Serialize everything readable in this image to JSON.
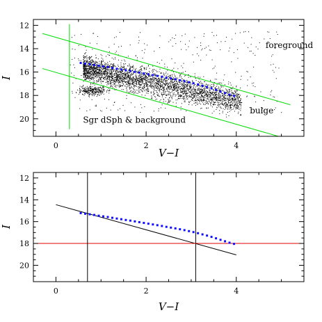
{
  "chart_data": [
    {
      "type": "scatter",
      "xlabel": "V−I",
      "ylabel": "I",
      "xlim": [
        -0.5,
        5.5
      ],
      "ylim": [
        21.5,
        11.5
      ],
      "x_ticks": [
        0,
        2,
        4
      ],
      "y_ticks": [
        12,
        14,
        16,
        18,
        20
      ],
      "annotations": [
        {
          "text": "foreground",
          "x": 4.65,
          "y": 13.95
        },
        {
          "text": "bulge",
          "x": 4.3,
          "y": 19.55
        },
        {
          "text": "Sgr dSph & background",
          "x": 0.6,
          "y": 20.35
        }
      ],
      "lines": [
        {
          "name": "upper-diagonal",
          "color": "#00dd00",
          "x": [
            -0.3,
            5.2
          ],
          "y": [
            12.7,
            18.8
          ]
        },
        {
          "name": "lower-diagonal",
          "color": "#00dd00",
          "x": [
            -0.3,
            5.2
          ],
          "y": [
            15.7,
            21.8
          ]
        },
        {
          "name": "vertical-cut",
          "color": "#00dd00",
          "x": [
            0.3,
            0.3
          ],
          "y": [
            11.9,
            20.9
          ]
        }
      ],
      "point_clouds": [
        {
          "name": "red-clump-band",
          "color": "#000000",
          "x_range": [
            0.6,
            4.1
          ],
          "y_at_x_start": 15.6,
          "y_at_x_end": 18.5,
          "spread": 0.55,
          "count": 3200
        },
        {
          "name": "sgr-clump",
          "color": "#000000",
          "center": [
            0.8,
            17.6
          ],
          "spread": [
            0.15,
            0.2
          ],
          "count": 250
        },
        {
          "name": "scattered-field",
          "color": "#000000",
          "x_range": [
            0.3,
            5.0
          ],
          "y_range": [
            12.5,
            19.5
          ],
          "count": 350
        }
      ],
      "series": [
        {
          "name": "ridge-points",
          "color": "#1010ff",
          "x": [
            0.55,
            0.65,
            0.75,
            0.85,
            0.95,
            1.05,
            1.15,
            1.25,
            1.35,
            1.45,
            1.55,
            1.65,
            1.75,
            1.85,
            1.95,
            2.05,
            2.15,
            2.25,
            2.35,
            2.45,
            2.55,
            2.65,
            2.75,
            2.85,
            2.95,
            3.05,
            3.15,
            3.25,
            3.35,
            3.45,
            3.55,
            3.65,
            3.75,
            3.85,
            3.95
          ],
          "y": [
            15.22,
            15.28,
            15.33,
            15.39,
            15.46,
            15.52,
            15.58,
            15.65,
            15.72,
            15.78,
            15.85,
            15.91,
            15.98,
            16.05,
            16.12,
            16.19,
            16.26,
            16.33,
            16.4,
            16.48,
            16.55,
            16.62,
            16.7,
            16.78,
            16.87,
            16.96,
            17.06,
            17.17,
            17.28,
            17.4,
            17.53,
            17.67,
            17.8,
            17.93,
            18.04
          ]
        }
      ]
    },
    {
      "type": "scatter",
      "xlabel": "V−I",
      "ylabel": "I",
      "xlim": [
        -0.5,
        5.5
      ],
      "ylim": [
        21.5,
        11.5
      ],
      "x_ticks": [
        0,
        2,
        4
      ],
      "y_ticks": [
        12,
        14,
        16,
        18,
        20
      ],
      "lines": [
        {
          "name": "fit-line",
          "color": "#000000",
          "x": [
            0.0,
            4.0
          ],
          "y": [
            14.45,
            19.05
          ]
        },
        {
          "name": "horizontal-limit",
          "color": "#e00000",
          "x": [
            -0.5,
            5.5
          ],
          "y": [
            18.0,
            18.0
          ]
        },
        {
          "name": "left-vertical",
          "color": "#000000",
          "x": [
            0.7,
            0.7
          ],
          "y": [
            11.5,
            21.5
          ]
        },
        {
          "name": "right-vertical",
          "color": "#000000",
          "x": [
            3.1,
            3.1
          ],
          "y": [
            11.5,
            21.5
          ]
        }
      ],
      "series": [
        {
          "name": "ridge-points",
          "color": "#1010ff",
          "x": [
            0.55,
            0.65,
            0.75,
            0.85,
            0.95,
            1.05,
            1.15,
            1.25,
            1.35,
            1.45,
            1.55,
            1.65,
            1.75,
            1.85,
            1.95,
            2.05,
            2.15,
            2.25,
            2.35,
            2.45,
            2.55,
            2.65,
            2.75,
            2.85,
            2.95,
            3.05,
            3.15,
            3.25,
            3.35,
            3.45,
            3.55,
            3.65,
            3.75,
            3.85,
            3.95
          ],
          "y": [
            15.22,
            15.28,
            15.33,
            15.39,
            15.46,
            15.52,
            15.58,
            15.65,
            15.72,
            15.78,
            15.85,
            15.91,
            15.98,
            16.05,
            16.12,
            16.19,
            16.26,
            16.33,
            16.4,
            16.48,
            16.55,
            16.62,
            16.7,
            16.78,
            16.87,
            16.96,
            17.06,
            17.17,
            17.28,
            17.4,
            17.53,
            17.67,
            17.8,
            17.93,
            18.04
          ]
        }
      ]
    }
  ]
}
